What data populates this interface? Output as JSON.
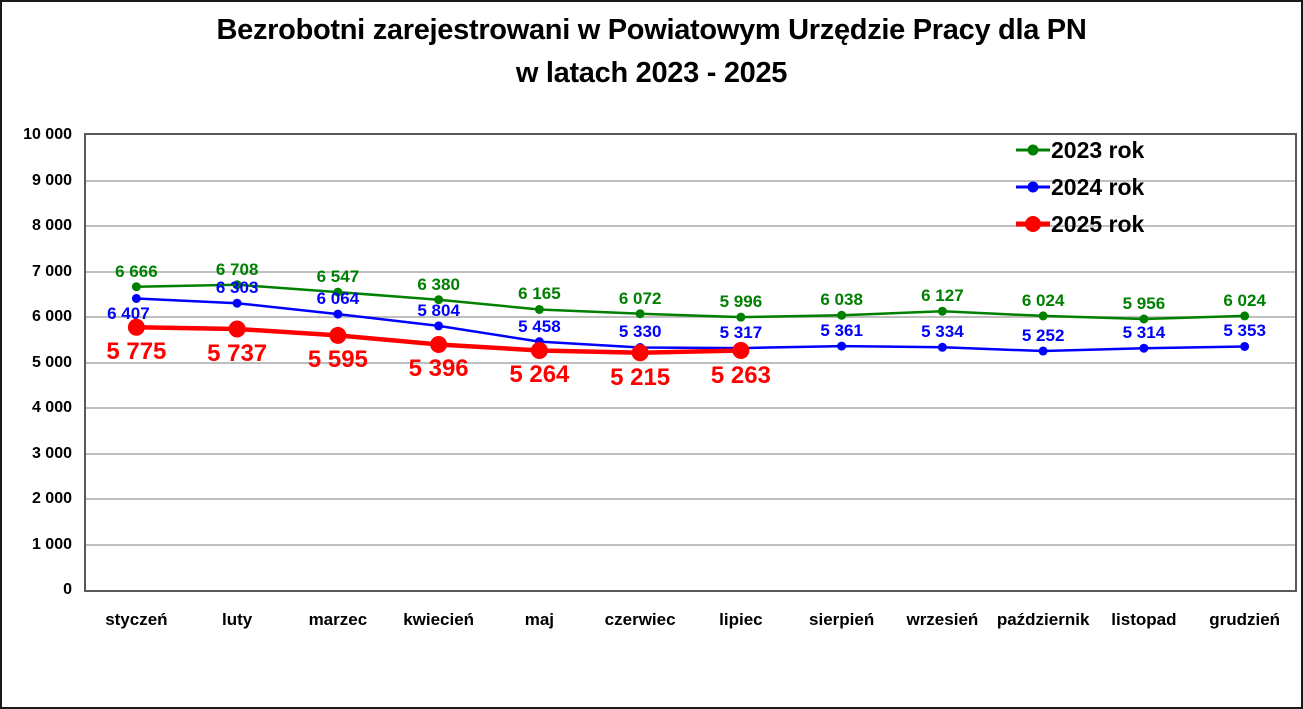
{
  "title": {
    "line1": "Bezrobotni zarejestrowani w Powiatowym Urzędzie Pracy dla PN",
    "line2": "w latach 2023 - 2025"
  },
  "chart_data": {
    "type": "line",
    "title": "Bezrobotni zarejestrowani w Powiatowym Urzędzie Pracy dla PN w latach 2023 - 2025",
    "categories": [
      "styczeń",
      "luty",
      "marzec",
      "kwiecień",
      "maj",
      "czerwiec",
      "lipiec",
      "sierpień",
      "wrzesień",
      "październik",
      "listopad",
      "grudzień"
    ],
    "series": [
      {
        "name": "2023 rok",
        "color": "#008000",
        "values": [
          6666,
          6708,
          6547,
          6380,
          6165,
          6072,
          5996,
          6038,
          6127,
          6024,
          5956,
          6024
        ]
      },
      {
        "name": "2024 rok",
        "color": "#0000ff",
        "values": [
          6407,
          6303,
          6064,
          5804,
          5458,
          5330,
          5317,
          5361,
          5334,
          5252,
          5314,
          5353
        ]
      },
      {
        "name": "2025 rok",
        "color": "#ff0000",
        "values": [
          5775,
          5737,
          5595,
          5396,
          5264,
          5215,
          5263
        ]
      }
    ],
    "ylim": [
      0,
      10000
    ],
    "ytick_step": 1000,
    "ytick_labels": [
      "0",
      "1 000",
      "2 000",
      "3 000",
      "4 000",
      "5 000",
      "6 000",
      "7 000",
      "8 000",
      "9 000",
      "10 000"
    ],
    "grid": "horizontal",
    "legend_position": "top-right",
    "number_format": "space thousands",
    "data_labels_shown": true
  },
  "colors": {
    "grid": "#bfbfbf",
    "axis": "#595959",
    "text": "#000000",
    "background": "#ffffff"
  }
}
